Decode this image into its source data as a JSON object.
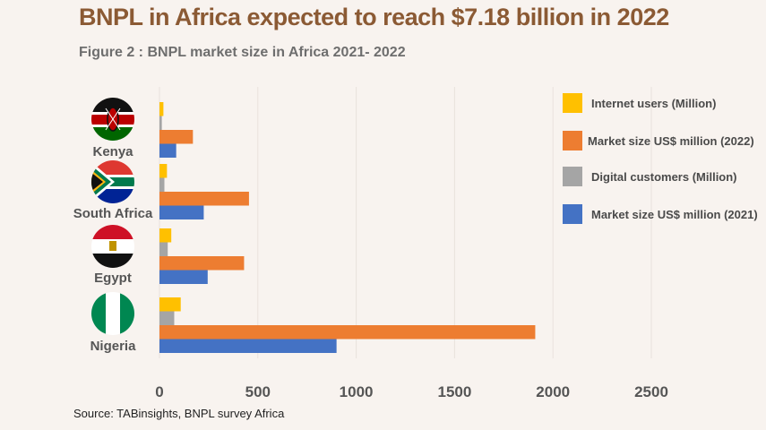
{
  "title": "BNPL in Africa expected to reach $7.18 billion in 2022",
  "subtitle": "Figure 2 : BNPL market size in Africa 2021- 2022",
  "source": "Source: TABinsights, BNPL survey Africa",
  "colors": {
    "internet_users": "#ffc000",
    "digital_customers": "#a5a5a5",
    "market_2022": "#ed7d31",
    "market_2021": "#4472c4",
    "grid": "#e9e2dc"
  },
  "chart_data": {
    "type": "bar",
    "orientation": "horizontal",
    "categories": [
      "Kenya",
      "South Africa",
      "Egypt",
      "Nigeria"
    ],
    "series": [
      {
        "name": "Internet users (Million)",
        "values": [
          20,
          38,
          60,
          108
        ]
      },
      {
        "name": "Digital customers (Million)",
        "values": [
          12,
          25,
          42,
          75
        ]
      },
      {
        "name": "Market size US$ million (2022)",
        "values": [
          170,
          455,
          430,
          1910
        ]
      },
      {
        "name": "Market size US$ million (2021)",
        "values": [
          85,
          225,
          245,
          900
        ]
      }
    ],
    "xlim": [
      0,
      2500
    ],
    "xticks": [
      "0",
      "500",
      "1000",
      "1500",
      "2000",
      "2500"
    ],
    "grid": true,
    "legend_position": "right",
    "legend_order": [
      "Internet users (Million)",
      "Market size US$ million (2022)",
      "Digital customers (Million)",
      "Market size US$ million (2021)"
    ]
  }
}
